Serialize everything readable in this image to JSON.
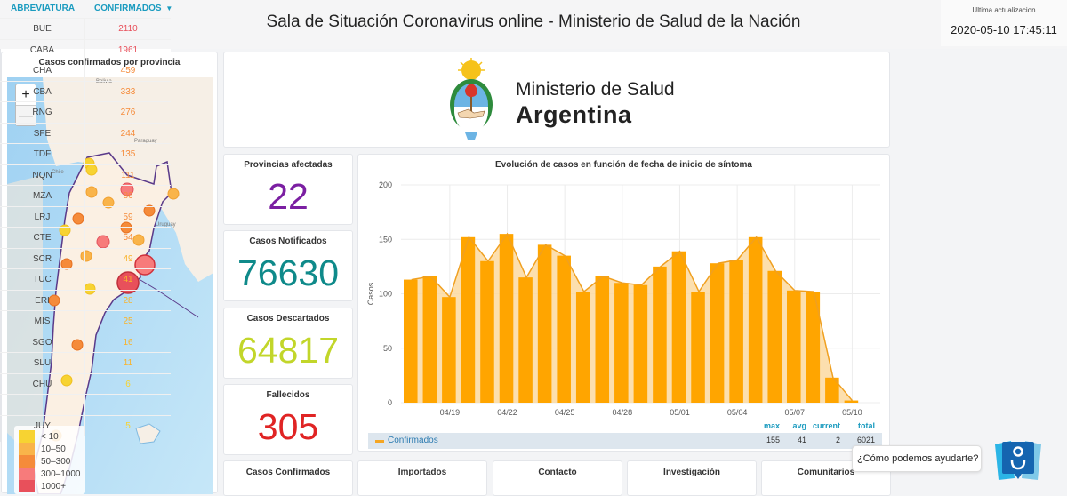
{
  "header": {
    "title": "Sala de Situación Coronavirus online - Ministerio de Salud de la Nación",
    "update_label": "Ultima actualizacion",
    "update_time": "2020-05-10 17:45:11"
  },
  "map": {
    "title": "Casos confirmados por provincia",
    "zoom_in": "+",
    "zoom_out": "—",
    "country_labels": [
      "Bolivia",
      "Paraguay",
      "Chile",
      "Uruguay"
    ],
    "legend": [
      {
        "label": "< 10",
        "color": "#f7d332"
      },
      {
        "label": "10–50",
        "color": "#f9b44a"
      },
      {
        "label": "50–300",
        "color": "#f58b3a"
      },
      {
        "label": "300–1000",
        "color": "#f77b7b"
      },
      {
        "label": "1000+",
        "color": "#e8505b"
      }
    ]
  },
  "logo": {
    "line1": "Ministerio de Salud",
    "line2": "Argentina"
  },
  "stats": [
    {
      "label": "Provincias afectadas",
      "value": "22",
      "color": "#7b1fa2"
    },
    {
      "label": "Casos Notificados",
      "value": "76630",
      "color": "#0f8a8a"
    },
    {
      "label": "Casos Descartados",
      "value": "64817",
      "color": "#c2d62a"
    },
    {
      "label": "Fallecidos",
      "value": "305",
      "color": "#e02424"
    }
  ],
  "bottom_cards": [
    "Casos Confirmados",
    "Importados",
    "Contacto",
    "Investigación",
    "Comunitarios"
  ],
  "chart_data": {
    "type": "bar",
    "title": "Evolución de casos en función de fecha de inicio de síntoma",
    "xlabel": "",
    "ylabel": "Casos",
    "ylim": [
      0,
      200
    ],
    "yticks": [
      0,
      50,
      100,
      150,
      200
    ],
    "xtick_labels": [
      "04/19",
      "04/22",
      "04/25",
      "04/28",
      "05/01",
      "05/04",
      "05/07",
      "05/10"
    ],
    "categories": [
      "04/17",
      "04/18",
      "04/19",
      "04/20",
      "04/21",
      "04/22",
      "04/23",
      "04/24",
      "04/25",
      "04/26",
      "04/27",
      "04/28",
      "04/29",
      "04/30",
      "05/01",
      "05/02",
      "05/03",
      "05/04",
      "05/05",
      "05/06",
      "05/07",
      "05/08",
      "05/09",
      "05/10"
    ],
    "series": [
      {
        "name": "Confirmados",
        "color": "#ffa500",
        "values": [
          113,
          116,
          97,
          152,
          130,
          155,
          115,
          145,
          135,
          102,
          116,
          110,
          108,
          125,
          139,
          102,
          128,
          131,
          152,
          121,
          103,
          102,
          23,
          2
        ]
      }
    ],
    "grid": true,
    "legend": "bottom",
    "summary": {
      "headers": [
        "max",
        "avg",
        "current",
        "total"
      ],
      "values": [
        "155",
        "41",
        "2",
        "6021"
      ]
    }
  },
  "table": {
    "headers": [
      "ABREVIATURA",
      "CONFIRMADOS"
    ],
    "sort_icon": "caret-down-icon",
    "rows": [
      {
        "abbr": "BUE",
        "value": "2110",
        "color": "#e8505b"
      },
      {
        "abbr": "CABA",
        "value": "1961",
        "color": "#e8505b"
      },
      {
        "abbr": "CHA",
        "value": "459",
        "color": "#f58b3a"
      },
      {
        "abbr": "CBA",
        "value": "333",
        "color": "#f58b3a"
      },
      {
        "abbr": "RNG",
        "value": "276",
        "color": "#f58b3a"
      },
      {
        "abbr": "SFE",
        "value": "244",
        "color": "#f58b3a"
      },
      {
        "abbr": "TDF",
        "value": "135",
        "color": "#f58b3a"
      },
      {
        "abbr": "NQN",
        "value": "111",
        "color": "#f58b3a"
      },
      {
        "abbr": "MZA",
        "value": "86",
        "color": "#f58b3a"
      },
      {
        "abbr": "LRJ",
        "value": "59",
        "color": "#f58b3a"
      },
      {
        "abbr": "CTE",
        "value": "54",
        "color": "#f58b3a"
      },
      {
        "abbr": "SCR",
        "value": "49",
        "color": "#f9b32a"
      },
      {
        "abbr": "TUC",
        "value": "41",
        "color": "#f9b32a"
      },
      {
        "abbr": "ERI",
        "value": "28",
        "color": "#f9b32a"
      },
      {
        "abbr": "MIS",
        "value": "25",
        "color": "#f9b32a"
      },
      {
        "abbr": "SGO",
        "value": "16",
        "color": "#f9b32a"
      },
      {
        "abbr": "SLU",
        "value": "11",
        "color": "#f9b32a"
      },
      {
        "abbr": "CHU",
        "value": "6",
        "color": "#f7d332"
      },
      {
        "abbr": "",
        "value": "",
        "color": "#f7d332"
      },
      {
        "abbr": "JUY",
        "value": "5",
        "color": "#f7d332"
      }
    ]
  },
  "chat": {
    "prompt": "¿Cómo podemos ayudarte?",
    "icon": "chat-assistant-icon"
  }
}
